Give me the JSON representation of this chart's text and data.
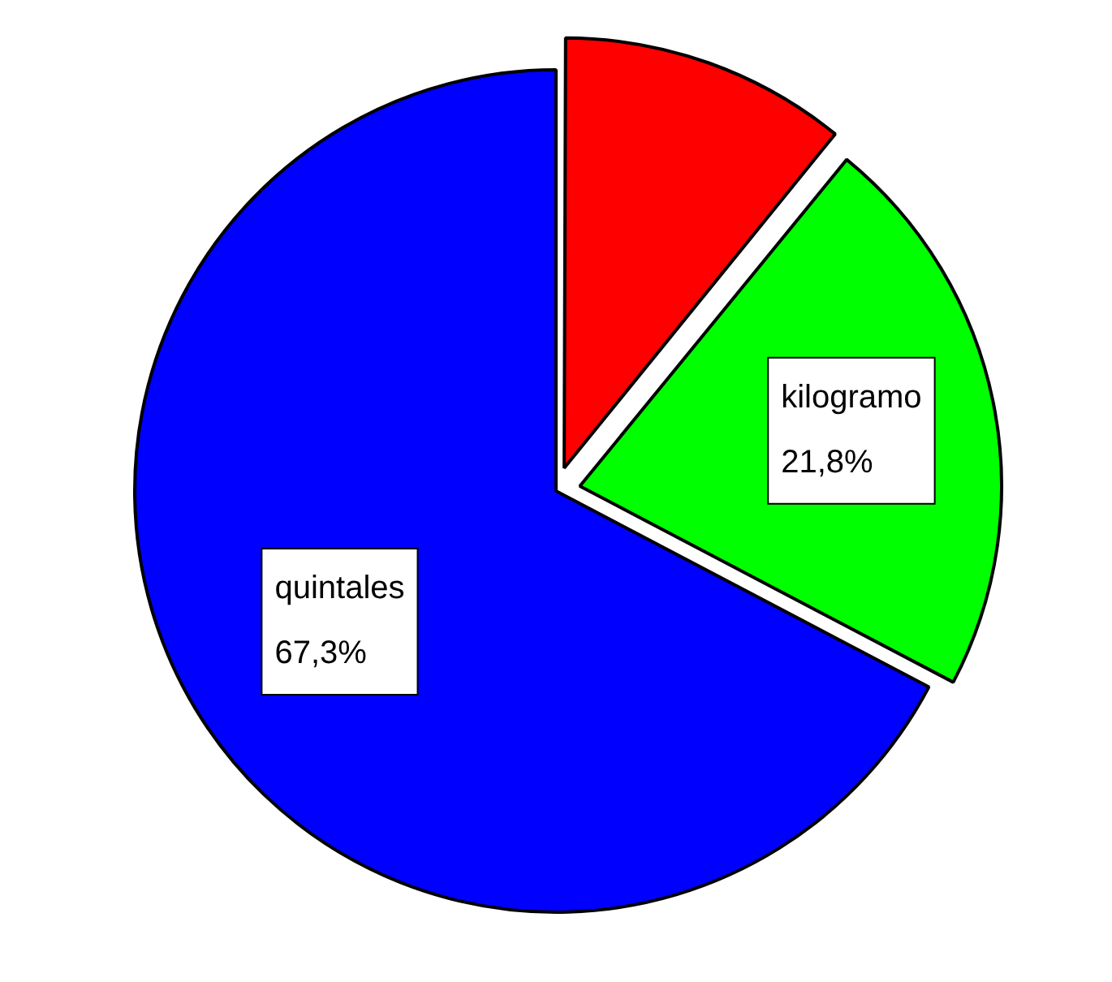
{
  "chart_data": {
    "type": "pie",
    "categories": [
      null,
      "kilogramo",
      "quintales"
    ],
    "values": [
      10.9,
      21.8,
      67.3
    ],
    "colors": [
      "#ff0000",
      "#00ff00",
      "#0000ff"
    ],
    "value_labels": [
      null,
      "21,8%",
      "67,3%"
    ]
  }
}
